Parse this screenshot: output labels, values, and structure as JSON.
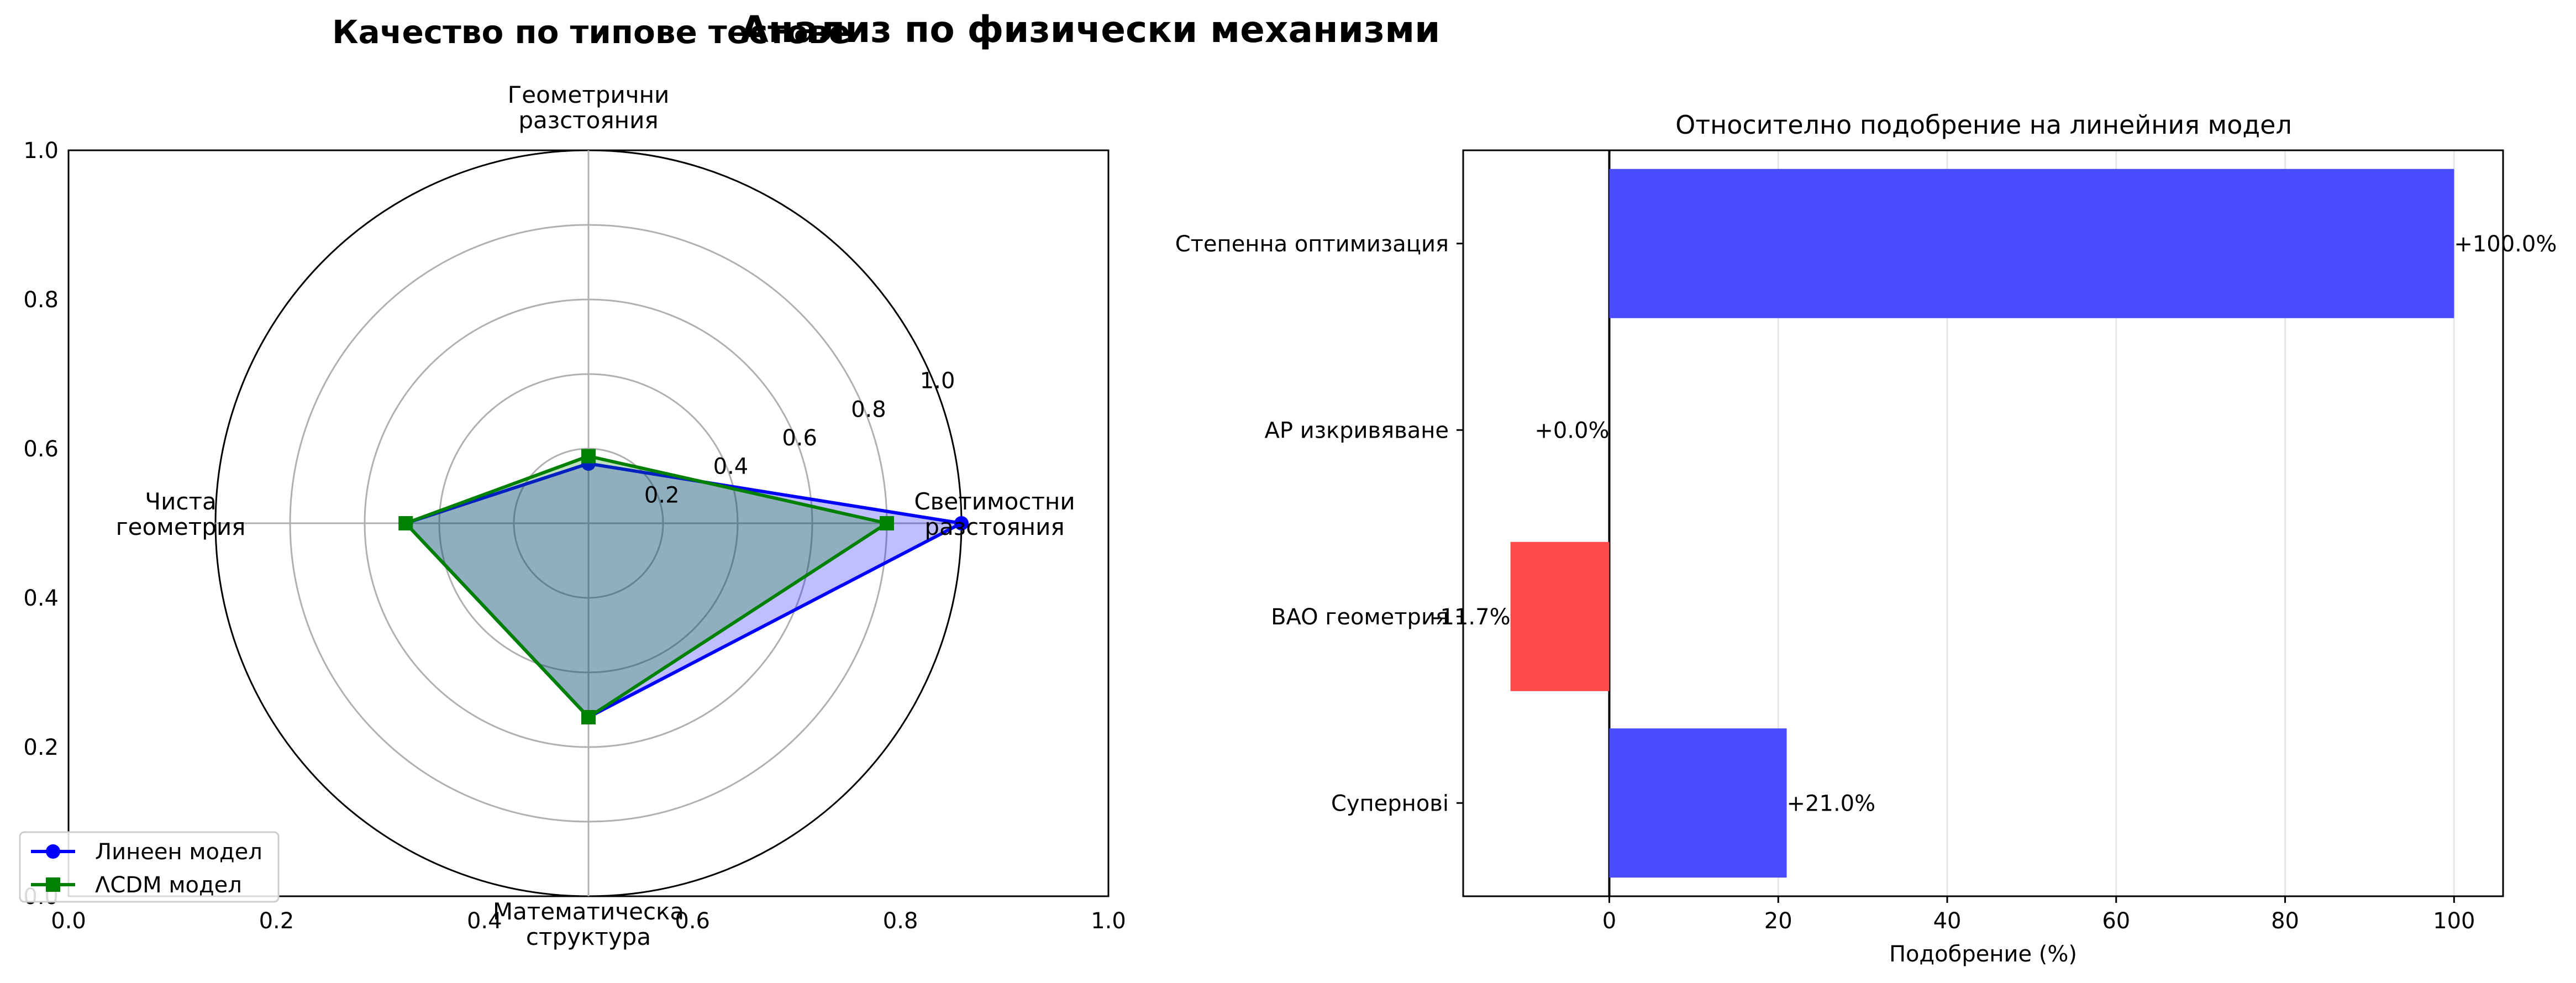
{
  "figure": {
    "title_left": "Качество по типове тестове",
    "title_main": "Анализ по физически механизми"
  },
  "chart_data": [
    {
      "type": "radar",
      "axes": [
        "Геометрични\nразстояния",
        "Светимостни\nразстояния",
        "Математическа\nструктура",
        "Чиста\nгеометрия"
      ],
      "rlim": [
        0,
        1
      ],
      "rticks": [
        "0.2",
        "0.4",
        "0.6",
        "0.8",
        "1.0"
      ],
      "cartesian_ticks": {
        "x": [
          "0.0",
          "0.2",
          "0.4",
          "0.6",
          "0.8",
          "1.0"
        ],
        "y": [
          "0.0",
          "0.2",
          "0.4",
          "0.6",
          "0.8",
          "1.0"
        ]
      },
      "series": [
        {
          "name": "Линеен модел",
          "values": [
            0.16,
            1.0,
            0.52,
            0.49
          ],
          "color": "#0000ff",
          "marker": "circle",
          "fill": "#0000ff"
        },
        {
          "name": "ΛCDM модел",
          "values": [
            0.18,
            0.8,
            0.52,
            0.49
          ],
          "color": "#008000",
          "marker": "square",
          "fill": "#008000"
        }
      ],
      "legend": "bottom-left",
      "grid": true
    },
    {
      "type": "bar",
      "orientation": "horizontal",
      "title": "Относително подобрение на линейния модел",
      "xlabel": "Подобрение (%)",
      "categories": [
        "Степенна оптимизация",
        "АР изкривяване",
        "BAO геометрия",
        "Супернові"
      ],
      "values": [
        100.0,
        0.0,
        -11.7,
        21.0
      ],
      "value_labels": [
        "+100.0%",
        "+0.0%",
        "-11.7%",
        "+21.0%"
      ],
      "xlim": [
        -17.3,
        105.8
      ],
      "xticks": [
        0,
        20,
        40,
        60,
        80,
        100
      ],
      "positive_color": "#4a4aff",
      "negative_color": "#ff4a4a",
      "grid": "x"
    }
  ]
}
